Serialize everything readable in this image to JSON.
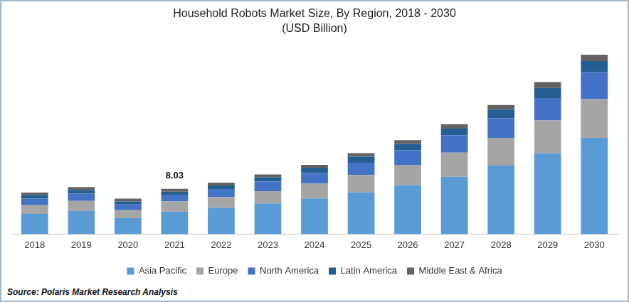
{
  "chart_data": {
    "type": "bar",
    "title": "Household Robots Market Size, By Region, 2018 - 2030",
    "subtitle": "(USD Billion)",
    "source": "Source: Polaris Market Research Analysis",
    "categories": [
      "2018",
      "2019",
      "2020",
      "2021",
      "2022",
      "2023",
      "2024",
      "2025",
      "2026",
      "2027",
      "2028",
      "2029",
      "2030"
    ],
    "series": [
      {
        "name": "Asia Pacific",
        "color": "#5b9bd5",
        "values": [
          3.6,
          4.1,
          2.85,
          4.0,
          4.65,
          5.45,
          6.35,
          7.4,
          8.7,
          10.2,
          12.2,
          14.4,
          17.1
        ]
      },
      {
        "name": "Europe",
        "color": "#a5a5a5",
        "values": [
          1.55,
          1.8,
          1.4,
          1.8,
          1.95,
          2.2,
          2.6,
          3.1,
          3.6,
          4.3,
          4.9,
          5.8,
          6.9
        ]
      },
      {
        "name": "North America",
        "color": "#4472c4",
        "values": [
          1.17,
          1.3,
          1.0,
          1.2,
          1.4,
          1.7,
          1.95,
          2.2,
          2.6,
          3.1,
          3.5,
          4.0,
          4.8
        ]
      },
      {
        "name": "Latin America",
        "color": "#255e91",
        "values": [
          0.65,
          0.65,
          0.55,
          0.55,
          0.65,
          0.75,
          0.9,
          1.05,
          1.15,
          1.15,
          1.55,
          1.8,
          1.95
        ]
      },
      {
        "name": "Middle East & Africa",
        "color": "#636363",
        "values": [
          0.4,
          0.5,
          0.5,
          0.48,
          0.5,
          0.5,
          0.5,
          0.65,
          0.65,
          0.8,
          0.8,
          1.05,
          1.15
        ]
      }
    ],
    "annotations": [
      {
        "x": "2021",
        "text": "8.03"
      }
    ],
    "ylim": [
      0,
      34
    ],
    "stacked": true,
    "grid": false,
    "legend": "bottom",
    "tick_labels": "x"
  }
}
